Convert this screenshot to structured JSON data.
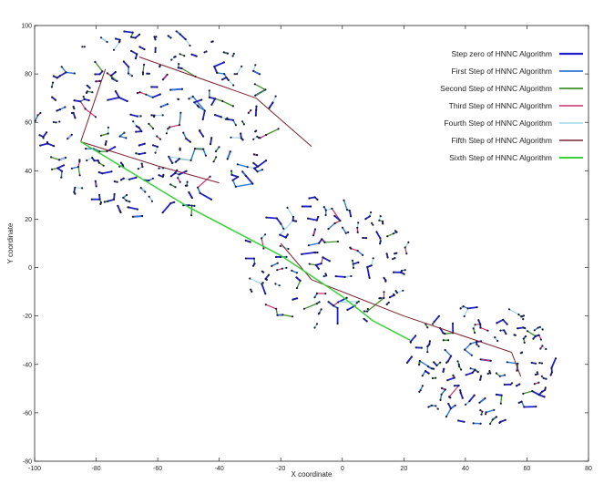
{
  "chart_data": {
    "type": "line",
    "xlabel": "X coordinate",
    "ylabel": "Y coordinate",
    "xlim": [
      -100,
      80
    ],
    "ylim": [
      -80,
      100
    ],
    "xticks": [
      -100,
      -80,
      -60,
      -40,
      -20,
      0,
      20,
      40,
      60,
      80
    ],
    "yticks": [
      -80,
      -60,
      -40,
      -20,
      0,
      20,
      40,
      60,
      80,
      100
    ],
    "grid": false,
    "legend_position": "top-right",
    "point_color": "#1a1a3a",
    "clusters": [
      {
        "center": [
          -60,
          60
        ],
        "radius": 40,
        "points": 380
      },
      {
        "center": [
          -5,
          2
        ],
        "radius": 28,
        "points": 190
      },
      {
        "center": [
          45,
          -40
        ],
        "radius": 25,
        "points": 200
      }
    ],
    "series": [
      {
        "name": "Step zero of HNNC Algorithm",
        "color": "#1f1fcf",
        "width": 1.8
      },
      {
        "name": "First Step of HNNC Algorithm",
        "color": "#2f78d6",
        "width": 1.4
      },
      {
        "name": "Second Step of HNNC Algorithm",
        "color": "#3f8f2a",
        "width": 1.3
      },
      {
        "name": "Third Step of HNNC Algorithm",
        "color": "#cc2f6a",
        "width": 1.2
      },
      {
        "name": "Fourth Step of HNNC Algorithm",
        "color": "#9fd8ea",
        "width": 1.2
      },
      {
        "name": "Fifth Step of HNNC Algorithm",
        "color": "#7a2230",
        "width": 1.0,
        "segments": [
          [
            [
              -85,
              52
            ],
            [
              -77,
              82
            ]
          ],
          [
            [
              -66,
              87
            ],
            [
              -28,
              70
            ]
          ],
          [
            [
              -28,
              70
            ],
            [
              -10,
              50
            ]
          ],
          [
            [
              -85,
              52
            ],
            [
              -60,
              42
            ]
          ],
          [
            [
              -60,
              42
            ],
            [
              -40,
              35
            ]
          ],
          [
            [
              -20,
              10
            ],
            [
              -10,
              -5
            ]
          ],
          [
            [
              -10,
              -5
            ],
            [
              20,
              -20
            ]
          ],
          [
            [
              20,
              -20
            ],
            [
              55,
              -35
            ]
          ],
          [
            [
              55,
              -35
            ],
            [
              58,
              -45
            ]
          ]
        ]
      },
      {
        "name": "Sixth Step of HNNC Algorithm",
        "color": "#37d13a",
        "width": 1.5,
        "segments": [
          [
            [
              -85,
              52
            ],
            [
              -50,
              25
            ]
          ],
          [
            [
              -50,
              25
            ],
            [
              -20,
              5
            ]
          ],
          [
            [
              -20,
              5
            ],
            [
              0,
              -12
            ]
          ],
          [
            [
              0,
              -12
            ],
            [
              10,
              -22
            ]
          ],
          [
            [
              10,
              -22
            ],
            [
              22,
              -30
            ]
          ]
        ]
      }
    ]
  }
}
